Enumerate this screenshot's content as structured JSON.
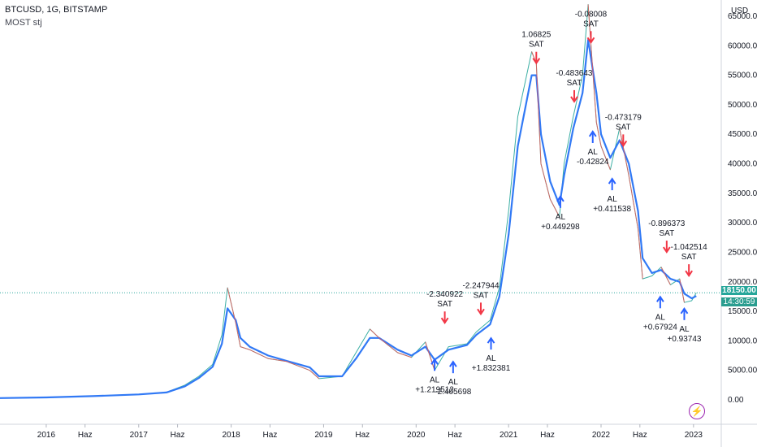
{
  "header": {
    "symbol": "BTCUSD, 1G, BITSTAMP",
    "indicator": "MOST stj"
  },
  "axis": {
    "currency": "USD"
  },
  "last_price": {
    "value": "18150.00",
    "countdown": "14:30:59"
  },
  "colors": {
    "up_arrow": "#2962ff",
    "down_arrow": "#f23645",
    "price_line": "#26a69a",
    "most_line": "#3179f5"
  },
  "icons": {
    "bolt": "lightning-icon"
  },
  "chart_data": {
    "type": "line",
    "title": "",
    "xlabel": "",
    "ylabel": "",
    "ylim": [
      -2000,
      70000
    ],
    "y_ticks": [
      "65000.00",
      "60000.00",
      "55000.00",
      "50000.00",
      "45000.00",
      "40000.00",
      "35000.00",
      "30000.00",
      "25000.00",
      "20000.00",
      "15000.00",
      "10000.00",
      "5000.00",
      "0.00"
    ],
    "x_ticks": [
      {
        "label": "2016",
        "x": 2016.0
      },
      {
        "label": "Haz",
        "x": 2016.42
      },
      {
        "label": "2017",
        "x": 2017.0
      },
      {
        "label": "Haz",
        "x": 2017.42
      },
      {
        "label": "2018",
        "x": 2018.0
      },
      {
        "label": "Haz",
        "x": 2018.42
      },
      {
        "label": "2019",
        "x": 2019.0
      },
      {
        "label": "Haz",
        "x": 2019.42
      },
      {
        "label": "2020",
        "x": 2020.0
      },
      {
        "label": "Haz",
        "x": 2020.42
      },
      {
        "label": "2021",
        "x": 2021.0
      },
      {
        "label": "Haz",
        "x": 2021.42
      },
      {
        "label": "2022",
        "x": 2022.0
      },
      {
        "label": "Haz",
        "x": 2022.42
      },
      {
        "label": "2023",
        "x": 2023.0
      }
    ],
    "series": [
      {
        "points": [
          [
            2015.5,
            300
          ],
          [
            2016.0,
            420
          ],
          [
            2016.5,
            650
          ],
          [
            2017.0,
            950
          ],
          [
            2017.3,
            1300
          ],
          [
            2017.5,
            2500
          ],
          [
            2017.65,
            4000
          ],
          [
            2017.8,
            6000
          ],
          [
            2017.9,
            11000
          ],
          [
            2017.96,
            19000
          ],
          [
            2018.05,
            13000
          ],
          [
            2018.1,
            9000
          ],
          [
            2018.2,
            8500
          ],
          [
            2018.4,
            7000
          ],
          [
            2018.6,
            6500
          ],
          [
            2018.85,
            5000
          ],
          [
            2018.95,
            3600
          ],
          [
            2019.2,
            4000
          ],
          [
            2019.35,
            8000
          ],
          [
            2019.5,
            12000
          ],
          [
            2019.6,
            10500
          ],
          [
            2019.8,
            8000
          ],
          [
            2019.95,
            7200
          ],
          [
            2020.1,
            9800
          ],
          [
            2020.2,
            5000
          ],
          [
            2020.35,
            9000
          ],
          [
            2020.55,
            9500
          ],
          [
            2020.65,
            11500
          ],
          [
            2020.8,
            13500
          ],
          [
            2020.9,
            19000
          ],
          [
            2021.0,
            32000
          ],
          [
            2021.1,
            48000
          ],
          [
            2021.25,
            59000
          ],
          [
            2021.3,
            57000
          ],
          [
            2021.35,
            40000
          ],
          [
            2021.45,
            34000
          ],
          [
            2021.55,
            31000
          ],
          [
            2021.6,
            40000
          ],
          [
            2021.7,
            48000
          ],
          [
            2021.8,
            55000
          ],
          [
            2021.86,
            67000
          ],
          [
            2021.95,
            47000
          ],
          [
            2022.0,
            43000
          ],
          [
            2022.1,
            39000
          ],
          [
            2022.2,
            46000
          ],
          [
            2022.3,
            38000
          ],
          [
            2022.4,
            29000
          ],
          [
            2022.45,
            20500
          ],
          [
            2022.55,
            21000
          ],
          [
            2022.65,
            22500
          ],
          [
            2022.75,
            19500
          ],
          [
            2022.85,
            20500
          ],
          [
            2022.9,
            16500
          ],
          [
            2022.98,
            16800
          ],
          [
            2023.03,
            18150
          ]
        ]
      },
      {
        "points": [
          [
            2015.5,
            300
          ],
          [
            2016.0,
            410
          ],
          [
            2016.5,
            630
          ],
          [
            2017.0,
            920
          ],
          [
            2017.3,
            1250
          ],
          [
            2017.5,
            2300
          ],
          [
            2017.65,
            3700
          ],
          [
            2017.8,
            5600
          ],
          [
            2017.9,
            9500
          ],
          [
            2017.96,
            15500
          ],
          [
            2018.05,
            13500
          ],
          [
            2018.1,
            10500
          ],
          [
            2018.2,
            9000
          ],
          [
            2018.4,
            7500
          ],
          [
            2018.6,
            6600
          ],
          [
            2018.85,
            5500
          ],
          [
            2018.95,
            4000
          ],
          [
            2019.2,
            4000
          ],
          [
            2019.35,
            7000
          ],
          [
            2019.5,
            10500
          ],
          [
            2019.6,
            10500
          ],
          [
            2019.8,
            8500
          ],
          [
            2019.95,
            7500
          ],
          [
            2020.1,
            9000
          ],
          [
            2020.2,
            6800
          ],
          [
            2020.35,
            8500
          ],
          [
            2020.55,
            9300
          ],
          [
            2020.65,
            11000
          ],
          [
            2020.8,
            12800
          ],
          [
            2020.9,
            17500
          ],
          [
            2021.0,
            28000
          ],
          [
            2021.1,
            43000
          ],
          [
            2021.25,
            55000
          ],
          [
            2021.3,
            55000
          ],
          [
            2021.35,
            45000
          ],
          [
            2021.45,
            37000
          ],
          [
            2021.55,
            33000
          ],
          [
            2021.6,
            38000
          ],
          [
            2021.7,
            46000
          ],
          [
            2021.8,
            52000
          ],
          [
            2021.86,
            61000
          ],
          [
            2021.95,
            52000
          ],
          [
            2022.0,
            45000
          ],
          [
            2022.1,
            41000
          ],
          [
            2022.2,
            44000
          ],
          [
            2022.3,
            40000
          ],
          [
            2022.4,
            32000
          ],
          [
            2022.45,
            24000
          ],
          [
            2022.55,
            21500
          ],
          [
            2022.65,
            22000
          ],
          [
            2022.75,
            20500
          ],
          [
            2022.85,
            20000
          ],
          [
            2022.9,
            18000
          ],
          [
            2022.98,
            17200
          ],
          [
            2023.03,
            17600
          ]
        ]
      }
    ],
    "annotations": [
      {
        "x": 2020.2,
        "y": 7400,
        "dir": "up",
        "label": "AL",
        "value": "+1.219512"
      },
      {
        "x": 2020.4,
        "y": 7000,
        "dir": "up",
        "label": "AL",
        "value": "-2.405698"
      },
      {
        "x": 2020.81,
        "y": 11000,
        "dir": "up",
        "label": "AL",
        "value": "+1.832381"
      },
      {
        "x": 2021.56,
        "y": 35000,
        "dir": "up",
        "label": "AL",
        "value": "+0.449298"
      },
      {
        "x": 2021.91,
        "y": 46000,
        "dir": "up",
        "label": "AL",
        "value": "-0.42824"
      },
      {
        "x": 2022.12,
        "y": 38000,
        "dir": "up",
        "label": "AL",
        "value": "+0.411538"
      },
      {
        "x": 2022.64,
        "y": 18000,
        "dir": "up",
        "label": "AL",
        "value": "+0.67924"
      },
      {
        "x": 2022.9,
        "y": 16000,
        "dir": "up",
        "label": "AL",
        "value": "+0.93743"
      },
      {
        "x": 2020.31,
        "y": 12500,
        "dir": "down",
        "label": "SAT",
        "value": "-2.340922"
      },
      {
        "x": 2020.7,
        "y": 14000,
        "dir": "down",
        "label": "SAT",
        "value": "-2.247944"
      },
      {
        "x": 2021.3,
        "y": 56500,
        "dir": "down",
        "label": "SAT",
        "value": "1.06825"
      },
      {
        "x": 2021.89,
        "y": 60000,
        "dir": "down",
        "label": "SAT",
        "value": "-0.08008"
      },
      {
        "x": 2021.71,
        "y": 50000,
        "dir": "down",
        "label": "SAT",
        "value": "-0.483643"
      },
      {
        "x": 2022.24,
        "y": 42500,
        "dir": "down",
        "label": "SAT",
        "value": "-0.473179"
      },
      {
        "x": 2022.71,
        "y": 24500,
        "dir": "down",
        "label": "SAT",
        "value": "-0.896373"
      },
      {
        "x": 2022.95,
        "y": 20500,
        "dir": "down",
        "label": "SAT",
        "value": "-1.042514"
      }
    ],
    "last_value": 18150,
    "grid": false,
    "legend": "none"
  }
}
